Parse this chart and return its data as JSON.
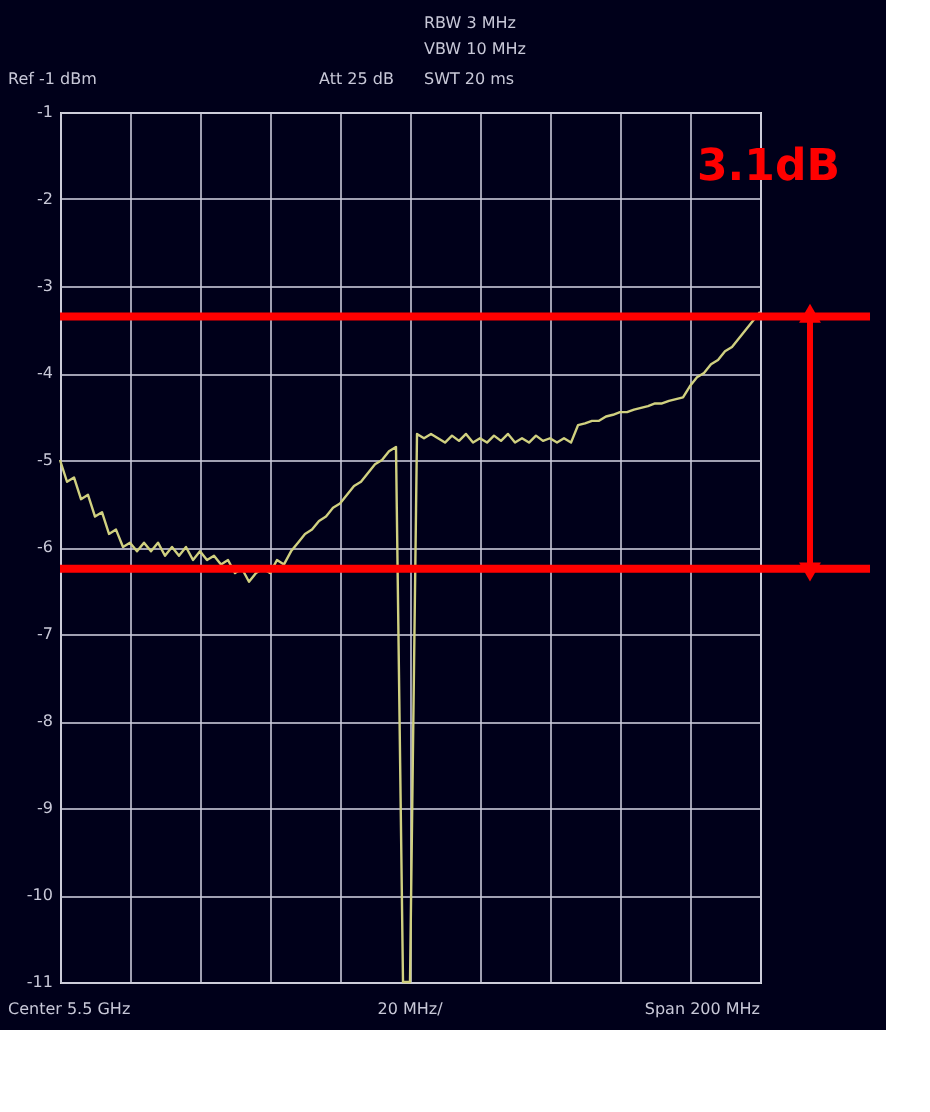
{
  "chart_data": {
    "type": "line",
    "categories": [
      null,
      null,
      null,
      null,
      null,
      null,
      null,
      null,
      null,
      null,
      null,
      null,
      null,
      null,
      null,
      null,
      null,
      null,
      null,
      null,
      null,
      null,
      null,
      null,
      null,
      null,
      null,
      null,
      null,
      null,
      null,
      null,
      null,
      null,
      null,
      null,
      null,
      null,
      null,
      null,
      null,
      null,
      null,
      null,
      null,
      null,
      null,
      null,
      null,
      null,
      null,
      null,
      null,
      null,
      null,
      null,
      null,
      null,
      null,
      null,
      null,
      null,
      null,
      null,
      null,
      null,
      null,
      null,
      null,
      null,
      null,
      null,
      null,
      null,
      null,
      null,
      null,
      null,
      null,
      null,
      null,
      null,
      null,
      null,
      null,
      null,
      null,
      null,
      null,
      null,
      null,
      null,
      null,
      null,
      null,
      null,
      null,
      null,
      null,
      null,
      null
    ],
    "series": [
      {
        "color": "#d0d080",
        "values": [
          -5.0,
          -5.25,
          -5.2,
          -5.45,
          -5.4,
          -5.65,
          -5.6,
          -5.85,
          -5.8,
          -6.0,
          -5.95,
          -6.05,
          -5.95,
          -6.05,
          -5.95,
          -6.1,
          -6.0,
          -6.1,
          -6.0,
          -6.15,
          -6.05,
          -6.15,
          -6.1,
          -6.2,
          -6.15,
          -6.3,
          -6.25,
          -6.4,
          -6.3,
          -6.25,
          -6.3,
          -6.15,
          -6.2,
          -6.05,
          -5.95,
          -5.85,
          -5.8,
          -5.7,
          -5.65,
          -5.55,
          -5.5,
          -5.4,
          -5.3,
          -5.25,
          -5.15,
          -5.05,
          -5.0,
          -4.9,
          -4.85,
          -11,
          -11,
          -4.7,
          -4.75,
          -4.7,
          -4.75,
          -4.8,
          -4.72,
          -4.78,
          -4.7,
          -4.8,
          -4.75,
          -4.8,
          -4.72,
          -4.78,
          -4.7,
          -4.8,
          -4.75,
          -4.8,
          -4.72,
          -4.78,
          -4.75,
          -4.8,
          -4.75,
          -4.8,
          -4.6,
          -4.58,
          -4.55,
          -4.55,
          -4.5,
          -4.48,
          -4.45,
          -4.45,
          -4.42,
          -4.4,
          -4.38,
          -4.35,
          -4.35,
          -4.32,
          -4.3,
          -4.28,
          -4.15,
          -4.05,
          -4.0,
          -3.9,
          -3.85,
          -3.75,
          -3.7,
          -3.6,
          -3.5,
          -3.4,
          -3.3
        ]
      }
    ],
    "ylim": [
      -11,
      -1
    ],
    "yticks": [
      -1,
      -2,
      -3,
      -4,
      -5,
      -6,
      -7,
      -8,
      -9,
      -10,
      -11
    ],
    "tick_labels": "y",
    "grid": true,
    "marker": "none",
    "line_style": "solid",
    "ref_lines": [
      {
        "axis": "y",
        "value": -6.25,
        "color": "#ff0000"
      },
      {
        "axis": "y",
        "value": -3.35,
        "label": "3.1dB",
        "color": "#ff0000"
      }
    ],
    "annotations": [
      "RBW 3 MHz",
      "VBW 10 MHz",
      "Ref -1 dBm",
      "Att 25 dB",
      "SWT 20 ms",
      "Center 5.5 GHz",
      "20 MHz/",
      "Span 200 MHz"
    ]
  }
}
